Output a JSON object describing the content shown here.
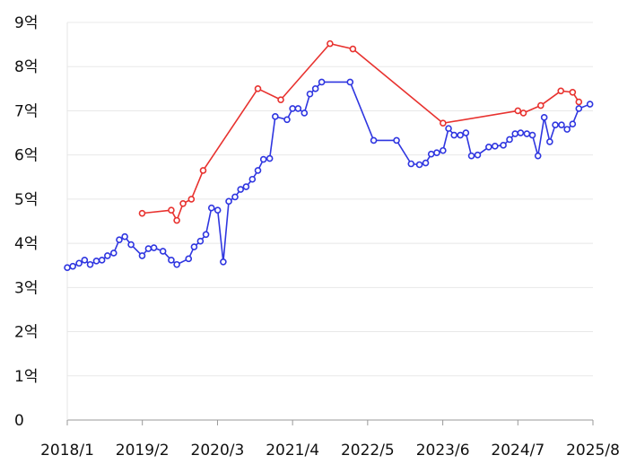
{
  "chart_data": {
    "type": "line",
    "title": "",
    "xlabel": "",
    "ylabel": "",
    "x_tick_labels": [
      "2018/1",
      "2019/2",
      "2020/3",
      "2021/4",
      "2022/5",
      "2023/6",
      "2024/7",
      "2025/8"
    ],
    "x_tick_values": [
      2018.0,
      2019.083,
      2020.167,
      2021.25,
      2022.333,
      2023.417,
      2024.5,
      2025.583
    ],
    "y_tick_labels": [
      "0",
      "1억",
      "2억",
      "3억",
      "4억",
      "5억",
      "6억",
      "7억",
      "8억",
      "9억"
    ],
    "y_tick_values": [
      0,
      1,
      2,
      3,
      4,
      5,
      6,
      7,
      8,
      9
    ],
    "xlim": [
      2018.0,
      2025.583
    ],
    "ylim": [
      0,
      9
    ],
    "grid": "horizontal",
    "legend": "none",
    "series": [
      {
        "color": "#e8322f",
        "points": [
          [
            2019.08,
            4.68
          ],
          [
            2019.5,
            4.75
          ],
          [
            2019.58,
            4.52
          ],
          [
            2019.67,
            4.9
          ],
          [
            2019.79,
            5.0
          ],
          [
            2019.96,
            5.65
          ],
          [
            2020.75,
            7.5
          ],
          [
            2021.08,
            7.25
          ],
          [
            2021.79,
            8.52
          ],
          [
            2022.12,
            8.4
          ],
          [
            2023.42,
            6.72
          ],
          [
            2024.5,
            7.0
          ],
          [
            2024.58,
            6.95
          ],
          [
            2024.83,
            7.12
          ],
          [
            2025.12,
            7.45
          ],
          [
            2025.29,
            7.42
          ],
          [
            2025.38,
            7.2
          ]
        ]
      },
      {
        "color": "#2f36e0",
        "points": [
          [
            2018.0,
            3.45
          ],
          [
            2018.08,
            3.48
          ],
          [
            2018.17,
            3.55
          ],
          [
            2018.25,
            3.62
          ],
          [
            2018.33,
            3.52
          ],
          [
            2018.42,
            3.6
          ],
          [
            2018.5,
            3.62
          ],
          [
            2018.58,
            3.72
          ],
          [
            2018.67,
            3.78
          ],
          [
            2018.75,
            4.08
          ],
          [
            2018.83,
            4.15
          ],
          [
            2018.92,
            3.97
          ],
          [
            2019.08,
            3.72
          ],
          [
            2019.17,
            3.88
          ],
          [
            2019.25,
            3.9
          ],
          [
            2019.38,
            3.82
          ],
          [
            2019.5,
            3.62
          ],
          [
            2019.58,
            3.52
          ],
          [
            2019.75,
            3.65
          ],
          [
            2019.83,
            3.92
          ],
          [
            2019.92,
            4.05
          ],
          [
            2020.0,
            4.2
          ],
          [
            2020.08,
            4.8
          ],
          [
            2020.17,
            4.75
          ],
          [
            2020.25,
            3.58
          ],
          [
            2020.33,
            4.95
          ],
          [
            2020.42,
            5.05
          ],
          [
            2020.5,
            5.22
          ],
          [
            2020.58,
            5.28
          ],
          [
            2020.67,
            5.45
          ],
          [
            2020.75,
            5.65
          ],
          [
            2020.83,
            5.9
          ],
          [
            2020.92,
            5.92
          ],
          [
            2021.0,
            6.87
          ],
          [
            2021.17,
            6.8
          ],
          [
            2021.25,
            7.05
          ],
          [
            2021.33,
            7.05
          ],
          [
            2021.42,
            6.95
          ],
          [
            2021.5,
            7.38
          ],
          [
            2021.58,
            7.5
          ],
          [
            2021.67,
            7.65
          ],
          [
            2022.08,
            7.65
          ],
          [
            2022.42,
            6.33
          ],
          [
            2022.75,
            6.33
          ],
          [
            2022.96,
            5.8
          ],
          [
            2023.08,
            5.78
          ],
          [
            2023.17,
            5.82
          ],
          [
            2023.25,
            6.02
          ],
          [
            2023.33,
            6.05
          ],
          [
            2023.42,
            6.1
          ],
          [
            2023.5,
            6.6
          ],
          [
            2023.58,
            6.45
          ],
          [
            2023.67,
            6.45
          ],
          [
            2023.75,
            6.5
          ],
          [
            2023.83,
            5.98
          ],
          [
            2023.92,
            6.0
          ],
          [
            2024.08,
            6.18
          ],
          [
            2024.17,
            6.2
          ],
          [
            2024.29,
            6.22
          ],
          [
            2024.38,
            6.35
          ],
          [
            2024.46,
            6.48
          ],
          [
            2024.54,
            6.5
          ],
          [
            2024.63,
            6.48
          ],
          [
            2024.71,
            6.45
          ],
          [
            2024.79,
            5.98
          ],
          [
            2024.88,
            6.85
          ],
          [
            2024.96,
            6.3
          ],
          [
            2025.04,
            6.68
          ],
          [
            2025.13,
            6.68
          ],
          [
            2025.21,
            6.58
          ],
          [
            2025.29,
            6.7
          ],
          [
            2025.38,
            7.05
          ],
          [
            2025.54,
            7.15
          ]
        ]
      }
    ]
  }
}
